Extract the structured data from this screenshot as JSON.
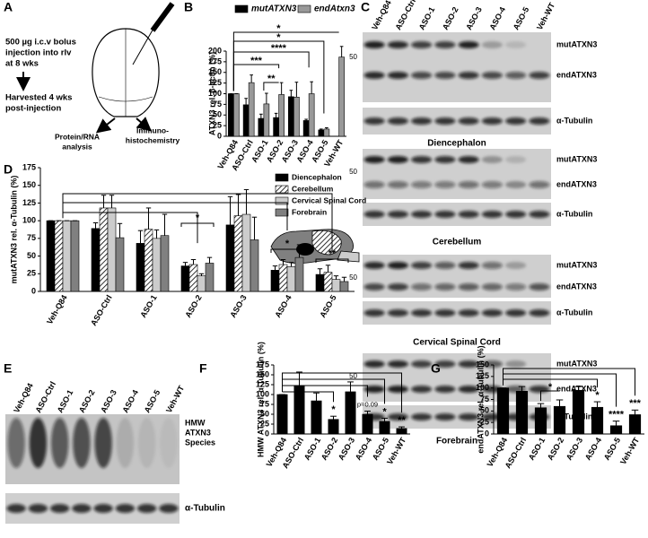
{
  "diagram": {
    "label": "A",
    "injection": [
      "500 µg i.c.v bolus",
      "injection into rlv",
      "at 8 wks"
    ],
    "harvest": [
      "Harvested 4 wks",
      "post-injection"
    ],
    "outputs": [
      [
        "Protein/RNA",
        "analysis"
      ],
      [
        "Immuno-",
        "histochemistry"
      ]
    ]
  },
  "blots_c": {
    "label": "C",
    "lanes": [
      "Veh-Q84",
      "ASO-Ctrl",
      "ASO-1",
      "ASO-2",
      "ASO-3",
      "ASO-4",
      "ASO-5",
      "Veh-WT"
    ],
    "marker": "50",
    "panels": [
      {
        "bands": [
          "mutATXN3",
          "endATXN3",
          "α-Tubulin"
        ],
        "caption": "Diencephalon"
      },
      {
        "bands": [
          "mutATXN3",
          "endATXN3",
          "α-Tubulin"
        ],
        "caption": "Cerebellum"
      },
      {
        "bands": [
          "mutATXN3",
          "endATXN3",
          "α-Tubulin"
        ],
        "caption": "Cervical Spinal Cord"
      },
      {
        "bands": [
          "mutATXN3",
          "endATXN3",
          "α-Tubulin"
        ],
        "caption": "Forebrain"
      }
    ]
  },
  "blots_e": {
    "label": "E",
    "lanes": [
      "Veh-Q84",
      "ASO-Ctrl",
      "ASO-1",
      "ASO-2",
      "ASO-3",
      "ASO-4",
      "ASO-5",
      "Veh-WT"
    ],
    "species": [
      "HMW",
      "ATXN3",
      "Species"
    ],
    "loading": "α-Tubulin"
  },
  "chart_data": [
    {
      "type": "bar",
      "label": "B",
      "ylabel": "ATXN3 rel. β-actin (%)",
      "legend": "top",
      "categories": [
        "Veh-Q84",
        "ASO-Ctrl",
        "ASO-1",
        "ASO-2",
        "ASO-3",
        "ASO-4",
        "ASO-5",
        "Veh-WT"
      ],
      "series": [
        {
          "name": "mutATXN3",
          "color": "#000000",
          "values": [
            100,
            74,
            42,
            44,
            93,
            37,
            15,
            null
          ],
          "errors": [
            0,
            15,
            10,
            10,
            15,
            3,
            2,
            null
          ]
        },
        {
          "name": "endAtxn3",
          "color": "#999999",
          "values": [
            100,
            126,
            76,
            98,
            92,
            100,
            17,
            186
          ],
          "errors": [
            0,
            18,
            25,
            28,
            35,
            28,
            3,
            25
          ]
        }
      ],
      "ylim": [
        0,
        200
      ],
      "yticks": [
        0,
        25,
        50,
        75,
        100,
        125,
        150,
        175,
        200
      ],
      "annotations": [
        "*",
        "*",
        "****",
        "***",
        "**"
      ]
    },
    {
      "type": "bar",
      "label": "D",
      "ylabel": "mutATXN3 rel. α-Tubulin (%)",
      "legend": "upper right",
      "categories": [
        "Veh-Q84",
        "ASO-Ctrl",
        "ASO-1",
        "ASO-2",
        "ASO-3",
        "ASO-4",
        "ASO-5"
      ],
      "series": [
        {
          "name": "Diencephalon",
          "color": "#000000",
          "values": [
            100,
            89,
            68,
            36,
            94,
            30,
            24
          ],
          "errors": [
            0,
            8,
            18,
            5,
            40,
            6,
            8
          ]
        },
        {
          "name": "Cerebellum",
          "color": "#000000",
          "pattern": "hatch",
          "values": [
            100,
            118,
            88,
            38,
            107,
            38,
            27
          ],
          "errors": [
            0,
            18,
            30,
            7,
            30,
            7,
            10
          ]
        },
        {
          "name": "Cervical Spinal Cord",
          "color": "#cccccc",
          "values": [
            100,
            118,
            75,
            22,
            109,
            35,
            17
          ],
          "errors": [
            0,
            18,
            12,
            3,
            35,
            6,
            5
          ]
        },
        {
          "name": "Forebrain",
          "color": "#808080",
          "values": [
            100,
            76,
            79,
            40,
            73,
            48,
            14
          ],
          "errors": [
            0,
            20,
            30,
            8,
            32,
            18,
            6
          ]
        }
      ],
      "ylim": [
        0,
        175
      ],
      "yticks": [
        0,
        25,
        50,
        75,
        100,
        125,
        150,
        175
      ],
      "annotations": [
        "*",
        "*",
        "**"
      ]
    },
    {
      "type": "bar",
      "label": "F",
      "ylabel": "HMW ATXN3 rel. α-Tubulin (%)",
      "color": "#000000",
      "categories": [
        "Veh-Q84",
        "ASO-Ctrl",
        "ASO-1",
        "ASO-2",
        "ASO-3",
        "ASO-4",
        "ASO-5",
        "Veh-WT"
      ],
      "values": [
        100,
        122,
        84,
        37,
        107,
        50,
        32,
        14
      ],
      "errors": [
        0,
        35,
        20,
        8,
        25,
        8,
        8,
        4
      ],
      "ylim": [
        0,
        175
      ],
      "yticks": [
        0,
        25,
        50,
        75,
        100,
        125,
        150,
        175
      ],
      "annotations": [
        "*",
        "p=0.09",
        "*",
        "**"
      ]
    },
    {
      "type": "bar",
      "label": "G",
      "ylabel": "endATXN3 rel. α-Tubulin (%)",
      "color": "#000000",
      "categories": [
        "Veh-Q84",
        "ASO-Ctrl",
        "ASO-1",
        "ASO-2",
        "ASO-3",
        "ASO-4",
        "ASO-5",
        "Veh-WT"
      ],
      "values": [
        100,
        93,
        57,
        60,
        95,
        58,
        18,
        42
      ],
      "errors": [
        0,
        10,
        9,
        14,
        8,
        12,
        10,
        10
      ],
      "ylim": [
        0,
        150
      ],
      "yticks": [
        0,
        25,
        50,
        75,
        100,
        125,
        150
      ],
      "annotations": [
        "*",
        "*",
        "****",
        "***"
      ]
    }
  ]
}
